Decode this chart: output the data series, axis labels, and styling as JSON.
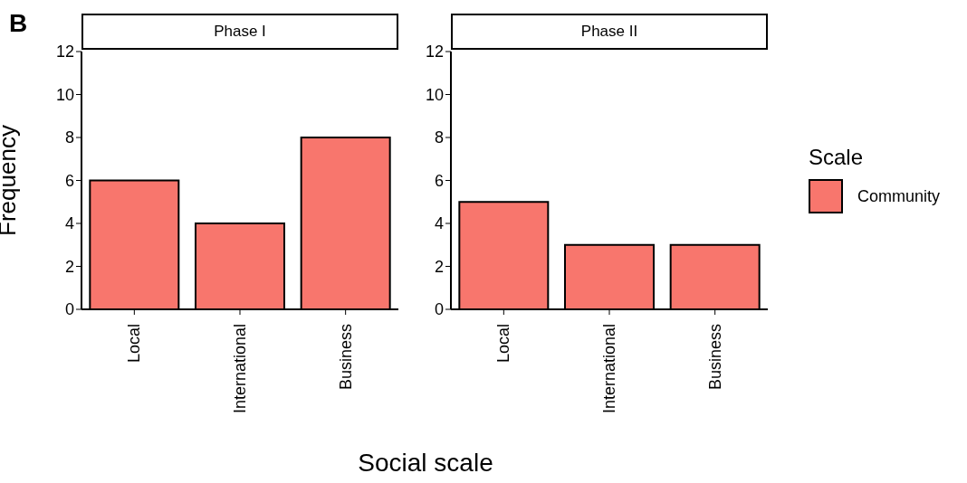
{
  "chart_data": [
    {
      "type": "bar",
      "title": "Phase I",
      "ylabel": "Frequency",
      "xlabel": "Social scale",
      "annotations": [
        "B"
      ],
      "categories": [
        "Local",
        "International",
        "Business"
      ],
      "series": [
        {
          "color": "#f8766d",
          "values": [
            6,
            4,
            8
          ]
        }
      ],
      "ylim": [
        0,
        12
      ],
      "yticks": [
        0,
        2,
        4,
        6,
        8,
        10,
        12
      ]
    },
    {
      "type": "bar",
      "title": "Phase II",
      "legend_title": "Scale",
      "legend": "right",
      "categories": [
        "Local",
        "International",
        "Business"
      ],
      "series": [
        {
          "name": "Community",
          "color": "#f8766d",
          "values": [
            5,
            3,
            3
          ]
        }
      ],
      "ylim": [
        0,
        12
      ],
      "yticks": [
        0,
        2,
        4,
        6,
        8,
        10,
        12
      ]
    }
  ]
}
